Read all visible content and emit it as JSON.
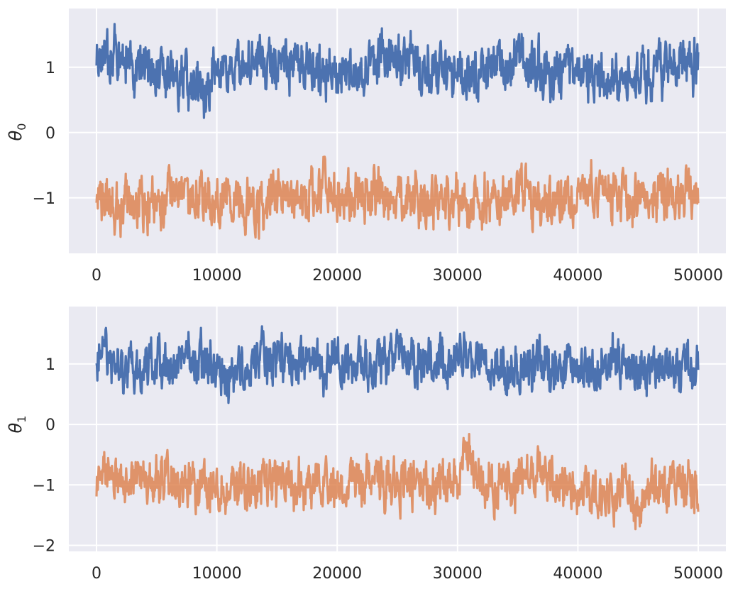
{
  "colors": {
    "panel_background": "#EAEAF2",
    "grid": "#FFFFFF",
    "chain_a": "#4C72B0",
    "chain_b": "#DD8452"
  },
  "chart_data": [
    {
      "type": "line",
      "ylabel": "θ0",
      "ylabel_base": "θ",
      "ylabel_subscript": "0",
      "xlim": [
        -2300,
        52300
      ],
      "ylim": [
        -1.85,
        1.9
      ],
      "xticks": [
        0,
        10000,
        20000,
        30000,
        40000,
        50000
      ],
      "xtick_labels": [
        "0",
        "10000",
        "20000",
        "30000",
        "40000",
        "50000"
      ],
      "yticks": [
        1,
        0,
        -1
      ],
      "ytick_labels": [
        "1",
        "0",
        "−1"
      ],
      "grid": true,
      "series": [
        {
          "color": "#4C72B0",
          "samples": 50000,
          "anchors": [
            [
              0,
              1.1
            ],
            [
              1500,
              1.3
            ],
            [
              3000,
              1.0
            ],
            [
              5000,
              1.0
            ],
            [
              7000,
              0.8
            ],
            [
              9000,
              0.55
            ],
            [
              10000,
              1.05
            ],
            [
              12000,
              1.0
            ],
            [
              14000,
              1.05
            ],
            [
              16000,
              1.1
            ],
            [
              18000,
              1.0
            ],
            [
              20000,
              0.85
            ],
            [
              22000,
              1.0
            ],
            [
              24000,
              1.2
            ],
            [
              26000,
              1.0
            ],
            [
              28000,
              0.95
            ],
            [
              30000,
              0.9
            ],
            [
              32000,
              1.0
            ],
            [
              34000,
              1.0
            ],
            [
              36000,
              1.0
            ],
            [
              38000,
              0.95
            ],
            [
              40000,
              0.9
            ],
            [
              42000,
              0.8
            ],
            [
              44000,
              0.95
            ],
            [
              46000,
              0.95
            ],
            [
              48000,
              1.1
            ],
            [
              50000,
              1.05
            ]
          ],
          "range_min": 0.2,
          "range_max": 1.77
        },
        {
          "color": "#DD8452",
          "samples": 50000,
          "anchors": [
            [
              0,
              -1.0
            ],
            [
              2000,
              -1.1
            ],
            [
              4000,
              -1.1
            ],
            [
              6000,
              -1.0
            ],
            [
              8000,
              -0.9
            ],
            [
              10000,
              -1.0
            ],
            [
              12000,
              -1.0
            ],
            [
              13500,
              -1.2
            ],
            [
              15000,
              -0.9
            ],
            [
              17000,
              -1.0
            ],
            [
              19000,
              -0.8
            ],
            [
              21000,
              -1.0
            ],
            [
              23000,
              -0.9
            ],
            [
              25000,
              -1.0
            ],
            [
              27000,
              -1.05
            ],
            [
              29000,
              -1.1
            ],
            [
              31000,
              -1.0
            ],
            [
              33000,
              -1.1
            ],
            [
              35000,
              -0.9
            ],
            [
              37000,
              -1.1
            ],
            [
              39000,
              -1.0
            ],
            [
              41000,
              -0.9
            ],
            [
              43000,
              -1.0
            ],
            [
              45000,
              -1.1
            ],
            [
              47000,
              -0.85
            ],
            [
              49000,
              -1.0
            ],
            [
              50000,
              -1.0
            ]
          ],
          "range_min": -1.68,
          "range_max": -0.22
        }
      ]
    },
    {
      "type": "line",
      "ylabel": "θ1",
      "ylabel_base": "θ",
      "ylabel_subscript": "1",
      "xlim": [
        -2300,
        52300
      ],
      "ylim": [
        -2.1,
        1.95
      ],
      "xticks": [
        0,
        10000,
        20000,
        30000,
        40000,
        50000
      ],
      "xtick_labels": [
        "0",
        "10000",
        "20000",
        "30000",
        "40000",
        "50000"
      ],
      "yticks": [
        1,
        0,
        -1,
        -2
      ],
      "ytick_labels": [
        "1",
        "0",
        "−1",
        "−2"
      ],
      "grid": true,
      "series": [
        {
          "color": "#4C72B0",
          "samples": 50000,
          "anchors": [
            [
              0,
              1.2
            ],
            [
              1500,
              1.1
            ],
            [
              3000,
              0.9
            ],
            [
              5000,
              1.0
            ],
            [
              7000,
              1.0
            ],
            [
              9000,
              1.05
            ],
            [
              11000,
              0.75
            ],
            [
              13000,
              1.0
            ],
            [
              15000,
              1.1
            ],
            [
              17000,
              1.0
            ],
            [
              19000,
              1.0
            ],
            [
              21000,
              1.0
            ],
            [
              23000,
              1.05
            ],
            [
              25000,
              1.15
            ],
            [
              27000,
              1.0
            ],
            [
              29000,
              1.0
            ],
            [
              31000,
              1.1
            ],
            [
              33000,
              0.9
            ],
            [
              35000,
              0.95
            ],
            [
              37000,
              1.0
            ],
            [
              39000,
              0.85
            ],
            [
              41000,
              0.9
            ],
            [
              43000,
              1.05
            ],
            [
              45000,
              0.85
            ],
            [
              47000,
              0.9
            ],
            [
              49000,
              0.95
            ],
            [
              50000,
              1.0
            ]
          ],
          "range_min": 0.25,
          "range_max": 1.8
        },
        {
          "color": "#DD8452",
          "samples": 50000,
          "anchors": [
            [
              0,
              -1.0
            ],
            [
              2000,
              -0.9
            ],
            [
              4000,
              -1.0
            ],
            [
              6000,
              -0.85
            ],
            [
              8000,
              -1.0
            ],
            [
              10000,
              -1.05
            ],
            [
              12000,
              -1.0
            ],
            [
              14000,
              -1.0
            ],
            [
              16000,
              -1.0
            ],
            [
              18000,
              -0.95
            ],
            [
              20000,
              -1.0
            ],
            [
              22000,
              -0.95
            ],
            [
              24000,
              -1.0
            ],
            [
              26000,
              -1.0
            ],
            [
              28000,
              -1.05
            ],
            [
              30000,
              -0.85
            ],
            [
              31000,
              -0.6
            ],
            [
              32000,
              -1.0
            ],
            [
              34000,
              -1.05
            ],
            [
              36000,
              -0.75
            ],
            [
              38000,
              -1.0
            ],
            [
              40000,
              -1.0
            ],
            [
              42000,
              -1.2
            ],
            [
              44000,
              -1.1
            ],
            [
              45000,
              -1.6
            ],
            [
              46000,
              -0.95
            ],
            [
              48000,
              -1.0
            ],
            [
              50000,
              -1.0
            ]
          ],
          "range_min": -1.92,
          "range_max": -0.1
        }
      ]
    }
  ]
}
